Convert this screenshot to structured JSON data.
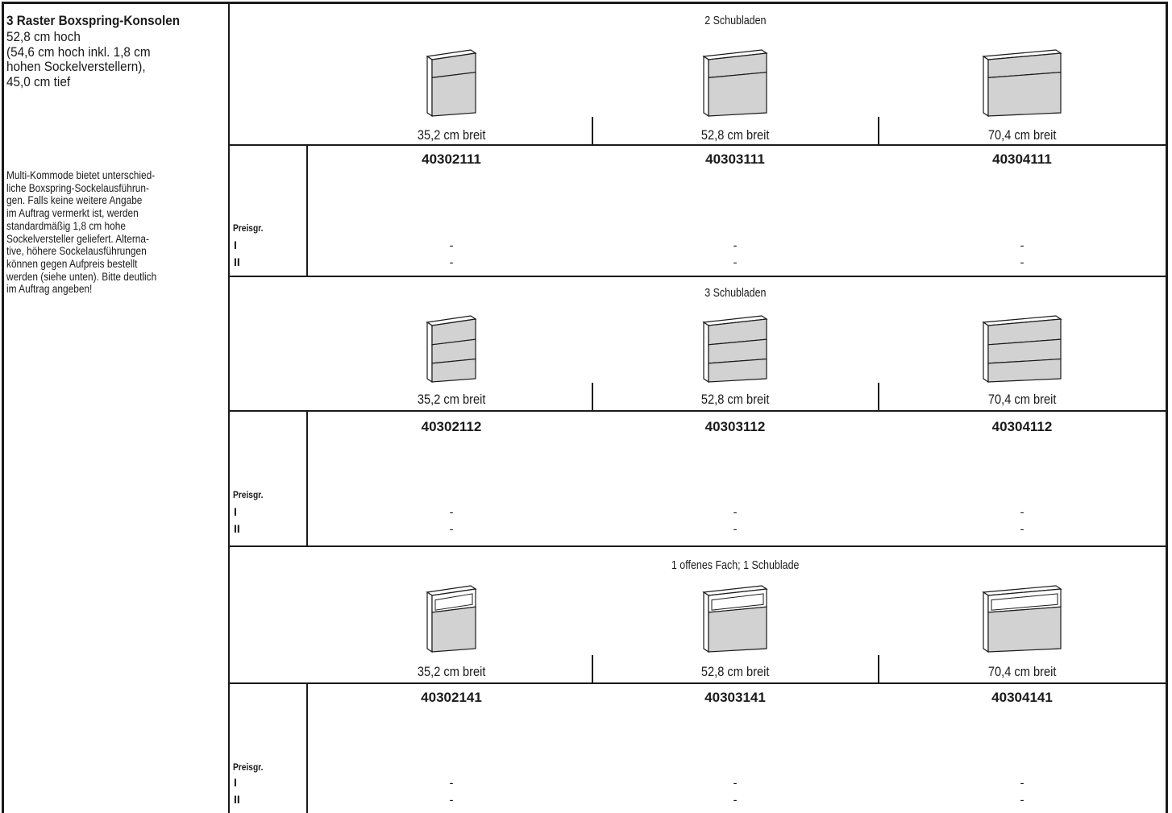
{
  "header": {
    "title": "3 Raster Boxspring-Konsolen",
    "specs": [
      "52,8 cm hoch",
      "(54,6 cm hoch inkl. 1,8 cm",
      "hohen Sockelverstellern),",
      "45,0 cm tief"
    ]
  },
  "description": [
    "Multi-Kommode bietet unterschied-",
    "liche Boxspring-Sockelausführun-",
    "gen. Falls keine weitere Angabe",
    "im Auftrag vermerkt ist, werden",
    "standardmäßig 1,8 cm hohe",
    "Sockelversteller geliefert. Alterna-",
    "tive, höhere Sockelausführungen",
    "können gegen Aufpreis bestellt",
    "werden (siehe unten). Bitte deutlich",
    "im Auftrag angeben!"
  ],
  "sections": [
    {
      "title": "2 Schubladen",
      "widths": [
        "35,2 cm breit",
        "52,8 cm breit",
        "70,4 cm breit"
      ],
      "articles": [
        "40302111",
        "40303111",
        "40304111"
      ],
      "price_label": "Preisgr.",
      "price_rows": [
        {
          "group": "I",
          "prices": [
            "-",
            "-",
            "-"
          ]
        },
        {
          "group": "II",
          "prices": [
            "-",
            "-",
            "-"
          ]
        }
      ]
    },
    {
      "title": "3 Schubladen",
      "widths": [
        "35,2 cm breit",
        "52,8 cm breit",
        "70,4 cm breit"
      ],
      "articles": [
        "40302112",
        "40303112",
        "40304112"
      ],
      "price_label": "Preisgr.",
      "price_rows": [
        {
          "group": "I",
          "prices": [
            "-",
            "-",
            "-"
          ]
        },
        {
          "group": "II",
          "prices": [
            "-",
            "-",
            "-"
          ]
        }
      ]
    },
    {
      "title": "1 offenes Fach; 1 Schublade",
      "widths": [
        "35,2 cm breit",
        "52,8 cm breit",
        "70,4 cm breit"
      ],
      "articles": [
        "40302141",
        "40303141",
        "40304141"
      ],
      "price_label": "Preisgr.",
      "price_rows": [
        {
          "group": "I",
          "prices": [
            "-",
            "-",
            "-"
          ]
        },
        {
          "group": "II",
          "prices": [
            "-",
            "-",
            "-"
          ]
        }
      ]
    }
  ]
}
